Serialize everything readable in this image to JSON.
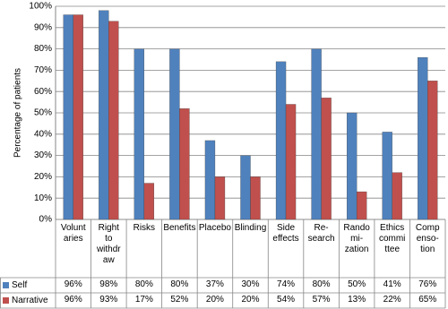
{
  "chart_data": {
    "type": "bar",
    "y_label": "Percentage of patients",
    "categories": [
      "Volunt\naries",
      "Right\nto\nwithdr\naw",
      "Risks",
      "Benefits",
      "Placebo",
      "Blinding",
      "Side\neffects",
      "Re-\nsearch",
      "Rando\nmi-\nzation",
      "Ethics\ncommi\nttee",
      "Comp\nenso-\ntion"
    ],
    "series": [
      {
        "name": "Self",
        "color": "#4f81bd",
        "values": [
          96,
          98,
          80,
          80,
          37,
          30,
          74,
          80,
          50,
          41,
          76
        ],
        "value_labels": [
          "96%",
          "98%",
          "80%",
          "80%",
          "37%",
          "30%",
          "74%",
          "80%",
          "50%",
          "41%",
          "76%"
        ]
      },
      {
        "name": "Narrative",
        "color": "#c0504d",
        "values": [
          96,
          93,
          17,
          52,
          20,
          20,
          54,
          57,
          13,
          22,
          65
        ],
        "value_labels": [
          "96%",
          "93%",
          "17%",
          "52%",
          "20%",
          "20%",
          "54%",
          "57%",
          "13%",
          "22%",
          "65%"
        ]
      }
    ],
    "ylim": [
      0,
      100
    ],
    "yticks": [
      {
        "value": 0,
        "label": "0%"
      },
      {
        "value": 10,
        "label": "10%"
      },
      {
        "value": 20,
        "label": "20%"
      },
      {
        "value": 30,
        "label": "30%"
      },
      {
        "value": 40,
        "label": "40%"
      },
      {
        "value": 50,
        "label": "50%"
      },
      {
        "value": 60,
        "label": "60%"
      },
      {
        "value": 70,
        "label": "70%"
      },
      {
        "value": 80,
        "label": "80%"
      },
      {
        "value": 90,
        "label": "90%"
      },
      {
        "value": 100,
        "label": "100%"
      }
    ],
    "grid": true
  }
}
